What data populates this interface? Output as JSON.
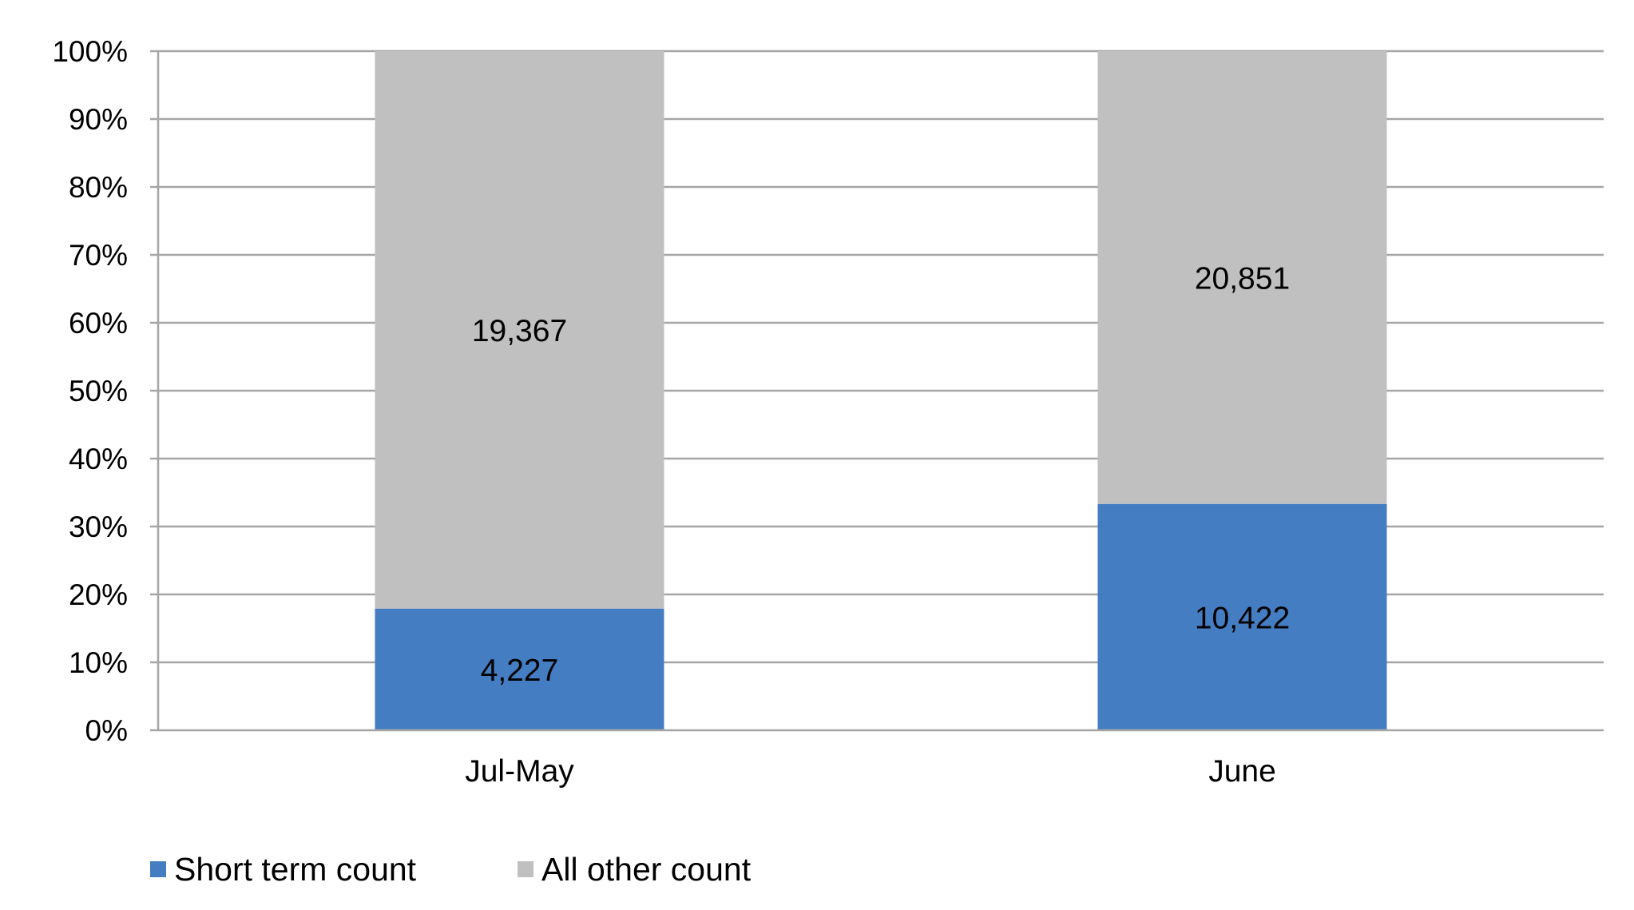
{
  "chart_data": {
    "type": "bar",
    "stacked": true,
    "normalized": true,
    "categories": [
      "Jul-May",
      "June"
    ],
    "series": [
      {
        "name": "Short term count",
        "values": [
          4227,
          10422
        ],
        "labels": [
          "4,227",
          "10,422"
        ],
        "color": "#447DC2"
      },
      {
        "name": "All other count",
        "values": [
          19367,
          20851
        ],
        "labels": [
          "19,367",
          "20,851"
        ],
        "color": "#C0C0C0"
      }
    ],
    "y_ticks": [
      "0%",
      "10%",
      "20%",
      "30%",
      "40%",
      "50%",
      "60%",
      "70%",
      "80%",
      "90%",
      "100%"
    ],
    "ylim": [
      0,
      100
    ],
    "grid": true,
    "gridline_color": "#A6A6A6",
    "legend": "bottom-left",
    "title": "",
    "xlabel": "",
    "ylabel": ""
  }
}
